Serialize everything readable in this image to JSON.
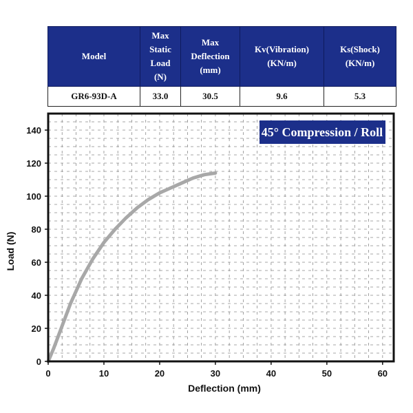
{
  "spec_table": {
    "headers": {
      "model": [
        "Model"
      ],
      "max_static_load": [
        "Max",
        "Static",
        "Load",
        "(N)"
      ],
      "max_deflection": [
        "Max",
        "Deflection",
        "(mm)"
      ],
      "kv": [
        "Kv(Vibration)",
        "(KN/m)"
      ],
      "ks": [
        "Ks(Shock)",
        "(KN/m)"
      ]
    },
    "row": {
      "model": "GR6-93D-A",
      "max_static_load": "33.0",
      "max_deflection": "30.5",
      "kv": "9.6",
      "ks": "5.3"
    },
    "header_bg": "#1c2f8a"
  },
  "chart_data": {
    "type": "line",
    "badge": "45° Compression / Roll",
    "xlabel": "Deflection (mm)",
    "ylabel": "Load (N)",
    "xlim": [
      0,
      62
    ],
    "ylim": [
      0,
      150
    ],
    "xticks": [
      0,
      10,
      20,
      30,
      40,
      50,
      60
    ],
    "yticks": [
      0,
      20,
      40,
      60,
      80,
      100,
      120,
      140
    ],
    "grid": true,
    "series": [
      {
        "color": "#a8a8a8",
        "x": [
          0,
          1,
          2,
          4,
          6,
          8,
          10,
          12,
          14,
          16,
          18,
          20,
          22,
          24,
          26,
          28,
          30
        ],
        "y": [
          0,
          8,
          17,
          35,
          50,
          62,
          72,
          80,
          87,
          93,
          98,
          102,
          105,
          108,
          111,
          113,
          114
        ]
      }
    ],
    "colors": {
      "badge_bg": "#1c2f8a",
      "grid": "#8a8a8a",
      "frame": "#111111"
    }
  }
}
